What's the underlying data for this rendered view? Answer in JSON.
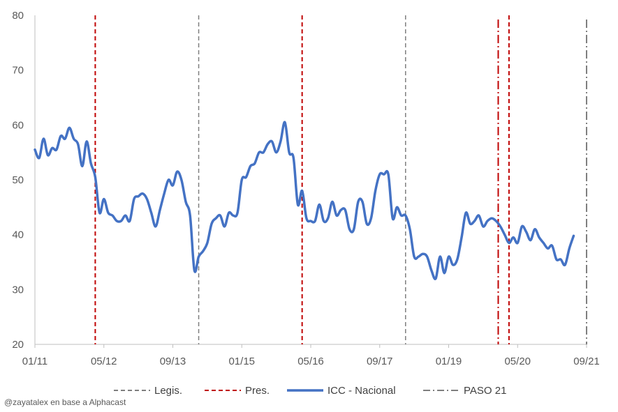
{
  "chart_data": {
    "type": "line",
    "ylim": [
      20,
      80
    ],
    "yticks": [
      20,
      30,
      40,
      50,
      60,
      70,
      80
    ],
    "x_tick_labels": [
      "01/11",
      "05/12",
      "09/13",
      "01/15",
      "05/16",
      "09/17",
      "01/19",
      "05/20",
      "09/21"
    ],
    "x_tick_months": [
      0,
      16,
      32,
      48,
      64,
      80,
      96,
      112,
      128
    ],
    "x_domain_months": [
      0,
      128
    ],
    "grid": false,
    "legend_position": "bottom",
    "series": [
      {
        "name": "ICC - Nacional",
        "color": "#4472C4",
        "values": [
          55.5,
          54,
          57.5,
          54.5,
          55.8,
          55.5,
          58,
          57.5,
          59.5,
          57.5,
          56.5,
          52.5,
          57,
          53,
          50.5,
          44,
          46.5,
          44,
          43.5,
          42.5,
          42.5,
          43.5,
          42.5,
          46.5,
          47,
          47.5,
          46.5,
          44,
          41.5,
          44.5,
          47.5,
          50,
          49,
          51.5,
          50,
          46,
          43.5,
          33.5,
          36,
          37,
          38.5,
          42,
          43,
          43.5,
          41.5,
          44,
          43.5,
          44,
          50,
          50.5,
          52.5,
          53,
          55,
          55,
          56.5,
          57,
          55,
          57,
          60.5,
          55,
          54,
          45.5,
          48,
          43,
          42.5,
          42.5,
          45.5,
          42.5,
          43,
          46,
          43.5,
          44.5,
          44.5,
          41,
          41,
          46,
          46,
          42,
          43,
          48,
          51,
          51,
          51,
          43,
          45,
          43.5,
          43.5,
          41,
          36,
          36,
          36.5,
          36,
          33.5,
          32,
          36,
          33,
          36,
          34.5,
          35.5,
          39.5,
          44,
          42,
          42.5,
          43.5,
          41.5,
          42.5,
          43,
          42.5,
          41.5,
          40,
          38.5,
          39.5,
          38.5,
          41.5,
          40.5,
          39,
          41,
          39.5,
          38.5,
          37.5,
          38,
          35.5,
          35.5,
          34.5,
          37.5,
          39.8
        ]
      }
    ],
    "vlines": [
      {
        "month": 14,
        "type": "Pres."
      },
      {
        "month": 38,
        "type": "Legis."
      },
      {
        "month": 62,
        "type": "Pres."
      },
      {
        "month": 86,
        "type": "Legis."
      },
      {
        "month": 107.5,
        "type": "PASO 21"
      },
      {
        "month": 110,
        "type": "Pres."
      },
      {
        "month": 128,
        "type": "PASO 21"
      }
    ],
    "legend": [
      {
        "label": "Legis.",
        "color": "#7F7F7F",
        "style": "dash"
      },
      {
        "label": "Pres.",
        "color": "#C00000",
        "style": "dash"
      },
      {
        "label": "ICC - Nacional",
        "color": "#4472C4",
        "style": "solid"
      },
      {
        "label": "PASO 21",
        "color": "#7F7F7F",
        "style": "dashdot"
      }
    ],
    "vline_colors": {
      "Pres.": "#C00000",
      "Legis.": "#7F7F7F",
      "PASO 21": "#7F7F7F"
    },
    "paso_accent_color": "#C00000"
  },
  "credit": "@zayatalex en base a Alphacast"
}
